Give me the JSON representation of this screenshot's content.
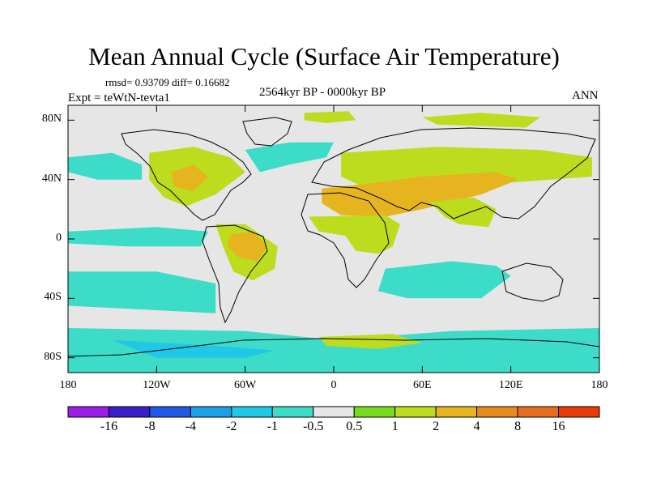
{
  "title": "Mean Annual Cycle (Surface Air Temperature)",
  "stats": "rmsd= 0.93709 diff= 0.16682",
  "experiment": "Expt = teWtN-tevta1",
  "period": "2564kyr BP - 0000kyr BP",
  "season": "ANN",
  "y_axis": {
    "ticks": [
      {
        "lat": 80,
        "label": "80N"
      },
      {
        "lat": 40,
        "label": "40N"
      },
      {
        "lat": 0,
        "label": "0"
      },
      {
        "lat": -40,
        "label": "40S"
      },
      {
        "lat": -80,
        "label": "80S"
      }
    ]
  },
  "x_axis": {
    "ticks": [
      {
        "lon": -180,
        "label": "180"
      },
      {
        "lon": -120,
        "label": "120W"
      },
      {
        "lon": -60,
        "label": "60W"
      },
      {
        "lon": 0,
        "label": "0"
      },
      {
        "lon": 60,
        "label": "60E"
      },
      {
        "lon": 120,
        "label": "120E"
      },
      {
        "lon": 180,
        "label": "180"
      }
    ]
  },
  "colorbar": {
    "colors": [
      "#9A1EE6",
      "#3C1EC8",
      "#1E5AE6",
      "#1EA0E6",
      "#1EC8E6",
      "#3CDCC8",
      "#E6E6E6",
      "#78DC1E",
      "#BEDC1E",
      "#E6B41E",
      "#E68C1E",
      "#E66E1E",
      "#E63C0A"
    ],
    "labels": [
      "-16",
      "-8",
      "-4",
      "-2",
      "-1",
      "-0.5",
      "0.5",
      "1",
      "2",
      "4",
      "8",
      "16"
    ]
  },
  "regions": [
    {
      "name": "green-eurasia",
      "color": "#BEDC1E",
      "pts": [
        [
          5,
          58
        ],
        [
          70,
          62
        ],
        [
          140,
          60
        ],
        [
          175,
          55
        ],
        [
          175,
          42
        ],
        [
          120,
          38
        ],
        [
          90,
          32
        ],
        [
          55,
          30
        ],
        [
          20,
          35
        ],
        [
          5,
          42
        ]
      ]
    },
    {
      "name": "orange-north-africa-arabia",
      "color": "#E6B41E",
      "pts": [
        [
          -8,
          34
        ],
        [
          30,
          38
        ],
        [
          60,
          42
        ],
        [
          110,
          45
        ],
        [
          125,
          40
        ],
        [
          100,
          30
        ],
        [
          60,
          20
        ],
        [
          35,
          15
        ],
        [
          5,
          16
        ],
        [
          -8,
          24
        ]
      ]
    },
    {
      "name": "green-africa-tropics",
      "color": "#BEDC1E",
      "pts": [
        [
          -17,
          15
        ],
        [
          35,
          16
        ],
        [
          45,
          10
        ],
        [
          40,
          -5
        ],
        [
          30,
          -10
        ],
        [
          15,
          -8
        ],
        [
          8,
          2
        ],
        [
          -10,
          5
        ]
      ]
    },
    {
      "name": "green-south-asia",
      "color": "#BEDC1E",
      "pts": [
        [
          65,
          25
        ],
        [
          95,
          28
        ],
        [
          110,
          20
        ],
        [
          105,
          8
        ],
        [
          85,
          10
        ],
        [
          75,
          15
        ]
      ]
    },
    {
      "name": "green-north-america",
      "color": "#BEDC1E",
      "pts": [
        [
          -125,
          58
        ],
        [
          -95,
          62
        ],
        [
          -70,
          55
        ],
        [
          -60,
          45
        ],
        [
          -80,
          30
        ],
        [
          -100,
          22
        ],
        [
          -115,
          28
        ],
        [
          -125,
          40
        ]
      ]
    },
    {
      "name": "orange-north-america",
      "color": "#E6B41E",
      "pts": [
        [
          -110,
          45
        ],
        [
          -95,
          50
        ],
        [
          -85,
          42
        ],
        [
          -95,
          32
        ],
        [
          -108,
          35
        ]
      ]
    },
    {
      "name": "green-south-america",
      "color": "#BEDC1E",
      "pts": [
        [
          -80,
          10
        ],
        [
          -60,
          10
        ],
        [
          -38,
          -5
        ],
        [
          -40,
          -20
        ],
        [
          -55,
          -28
        ],
        [
          -68,
          -22
        ],
        [
          -75,
          -5
        ]
      ]
    },
    {
      "name": "orange-amazon",
      "color": "#E6B41E",
      "pts": [
        [
          -70,
          3
        ],
        [
          -55,
          5
        ],
        [
          -45,
          -5
        ],
        [
          -52,
          -15
        ],
        [
          -65,
          -12
        ],
        [
          -72,
          -5
        ]
      ]
    },
    {
      "name": "green-arctic-siberia",
      "color": "#BEDC1E",
      "pts": [
        [
          60,
          82
        ],
        [
          100,
          85
        ],
        [
          140,
          82
        ],
        [
          130,
          75
        ],
        [
          100,
          76
        ],
        [
          70,
          77
        ]
      ]
    },
    {
      "name": "green-greenland-sea",
      "color": "#BEDC1E",
      "pts": [
        [
          -20,
          85
        ],
        [
          10,
          86
        ],
        [
          15,
          80
        ],
        [
          -5,
          78
        ],
        [
          -20,
          80
        ]
      ]
    },
    {
      "name": "cyan-north-pacific",
      "color": "#3CDCC8",
      "pts": [
        [
          -180,
          55
        ],
        [
          -150,
          58
        ],
        [
          -130,
          50
        ],
        [
          -130,
          40
        ],
        [
          -160,
          40
        ],
        [
          -180,
          45
        ]
      ]
    },
    {
      "name": "cyan-north-atlantic",
      "color": "#3CDCC8",
      "pts": [
        [
          -60,
          60
        ],
        [
          -30,
          65
        ],
        [
          0,
          65
        ],
        [
          -5,
          55
        ],
        [
          -30,
          50
        ],
        [
          -50,
          45
        ]
      ]
    },
    {
      "name": "cyan-south-pacific",
      "color": "#3CDCC8",
      "pts": [
        [
          -180,
          -22
        ],
        [
          -120,
          -22
        ],
        [
          -80,
          -30
        ],
        [
          -80,
          -50
        ],
        [
          -120,
          -48
        ],
        [
          -180,
          -45
        ]
      ]
    },
    {
      "name": "cyan-indian-ocean",
      "color": "#3CDCC8",
      "pts": [
        [
          35,
          -20
        ],
        [
          80,
          -15
        ],
        [
          110,
          -18
        ],
        [
          120,
          -25
        ],
        [
          100,
          -40
        ],
        [
          50,
          -40
        ],
        [
          30,
          -35
        ]
      ]
    },
    {
      "name": "cyan-southern-ocean",
      "color": "#3CDCC8",
      "pts": [
        [
          -180,
          -60
        ],
        [
          -60,
          -62
        ],
        [
          0,
          -68
        ],
        [
          80,
          -62
        ],
        [
          180,
          -60
        ],
        [
          180,
          -90
        ],
        [
          -180,
          -90
        ]
      ]
    },
    {
      "name": "blue-southern-ocean",
      "color": "#1EC8E6",
      "pts": [
        [
          -150,
          -68
        ],
        [
          -80,
          -72
        ],
        [
          -40,
          -75
        ],
        [
          -60,
          -80
        ],
        [
          -120,
          -80
        ]
      ]
    },
    {
      "name": "green-antarctic-coast",
      "color": "#BEDC1E",
      "pts": [
        [
          -10,
          -66
        ],
        [
          40,
          -64
        ],
        [
          60,
          -70
        ],
        [
          30,
          -74
        ],
        [
          -5,
          -72
        ]
      ]
    },
    {
      "name": "cyan-tropical-pacific",
      "color": "#3CDCC8",
      "pts": [
        [
          -180,
          5
        ],
        [
          -120,
          8
        ],
        [
          -85,
          5
        ],
        [
          -90,
          -5
        ],
        [
          -140,
          -5
        ],
        [
          -180,
          -3
        ]
      ]
    }
  ]
}
